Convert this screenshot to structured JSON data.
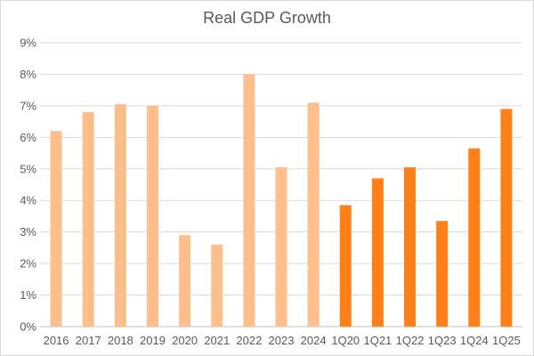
{
  "chart_data": {
    "type": "bar",
    "title": "Real GDP Growth",
    "xlabel": "",
    "ylabel": "",
    "ylim": [
      0,
      9
    ],
    "y_ticks": [
      "0%",
      "1%",
      "2%",
      "3%",
      "4%",
      "5%",
      "6%",
      "7%",
      "8%",
      "9%"
    ],
    "y_tick_values": [
      0,
      1,
      2,
      3,
      4,
      5,
      6,
      7,
      8,
      9
    ],
    "categories": [
      "2016",
      "2017",
      "2018",
      "2019",
      "2020",
      "2021",
      "2022",
      "2023",
      "2024",
      "1Q20",
      "1Q21",
      "1Q22",
      "1Q23",
      "1Q24",
      "1Q25"
    ],
    "values": [
      6.2,
      6.8,
      7.05,
      7.0,
      2.9,
      2.6,
      8.0,
      5.05,
      7.1,
      3.85,
      4.7,
      5.05,
      3.35,
      5.65,
      6.9
    ],
    "bar_colors": [
      "#FFBF8C",
      "#FFBF8C",
      "#FFBF8C",
      "#FFBF8C",
      "#FFBF8C",
      "#FFBF8C",
      "#FFBF8C",
      "#FFBF8C",
      "#FFBF8C",
      "#FF7F19",
      "#FF7F19",
      "#FF7F19",
      "#FF7F19",
      "#FF7F19",
      "#FF7F19"
    ],
    "grid": true,
    "gridline_color": "#d9d9d9",
    "legend": "none"
  }
}
